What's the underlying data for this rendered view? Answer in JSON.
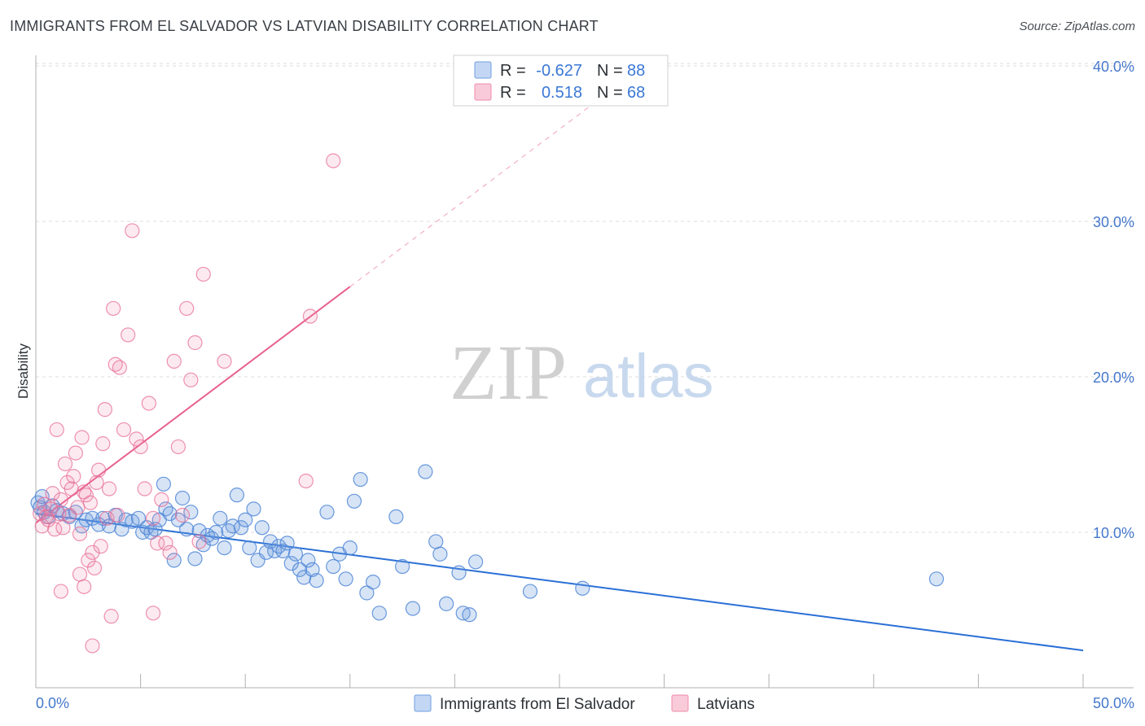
{
  "title": "IMMIGRANTS FROM EL SALVADOR VS LATVIAN DISABILITY CORRELATION CHART",
  "source": "Source: ZipAtlas.com",
  "watermark": {
    "zip": "ZIP",
    "atlas": "atlas"
  },
  "colors": {
    "blue": "#6f9fe0",
    "blue_line": "#2a6fd6",
    "pink": "#f08bab",
    "pink_line": "#e8608e",
    "value_text": "#3a78d6",
    "grid": "#d9d9d9"
  },
  "legend": {
    "rows": [
      {
        "r_label": "R =",
        "r_value": "-0.627",
        "n_label": "N =",
        "n_value": "88"
      },
      {
        "r_label": "R =",
        "r_value": "0.518",
        "n_label": "N =",
        "n_value": "68"
      }
    ]
  },
  "chart_data": {
    "type": "scatter",
    "title": "IMMIGRANTS FROM EL SALVADOR VS LATVIAN DISABILITY CORRELATION CHART",
    "xlabel": "",
    "ylabel": "Disability",
    "xlim": [
      0,
      50
    ],
    "ylim": [
      0,
      42
    ],
    "x_tick_labels": [
      "0.0%",
      "50.0%"
    ],
    "y_ticks": [
      10,
      20,
      30,
      40
    ],
    "y_tick_labels": [
      "10.0%",
      "20.0%",
      "30.0%",
      "40.0%"
    ],
    "grid": true,
    "legend_position": "top-center",
    "series": [
      {
        "name": "Immigrants from El Salvador",
        "color": "#6f9fe0",
        "r": -0.627,
        "n": 88,
        "trend": {
          "x": [
            0,
            50
          ],
          "y": [
            11.2,
            2.4
          ],
          "dashed_to": 50
        },
        "points": [
          [
            0.1,
            11.9
          ],
          [
            0.2,
            11.6
          ],
          [
            0.4,
            11.3
          ],
          [
            0.6,
            11.0
          ],
          [
            0.8,
            11.7
          ],
          [
            1.0,
            11.4
          ],
          [
            1.3,
            11.2
          ],
          [
            1.6,
            11.0
          ],
          [
            1.9,
            11.3
          ],
          [
            2.2,
            10.4
          ],
          [
            2.4,
            10.8
          ],
          [
            2.7,
            10.9
          ],
          [
            3.0,
            10.5
          ],
          [
            3.2,
            10.9
          ],
          [
            3.5,
            10.4
          ],
          [
            3.8,
            11.1
          ],
          [
            4.1,
            10.2
          ],
          [
            4.3,
            10.8
          ],
          [
            4.6,
            10.7
          ],
          [
            4.9,
            10.9
          ],
          [
            5.1,
            10.0
          ],
          [
            5.3,
            10.3
          ],
          [
            5.5,
            10.0
          ],
          [
            5.7,
            10.2
          ],
          [
            5.9,
            10.8
          ],
          [
            6.1,
            13.1
          ],
          [
            6.2,
            11.5
          ],
          [
            6.4,
            11.2
          ],
          [
            6.6,
            8.2
          ],
          [
            6.8,
            10.8
          ],
          [
            7.0,
            12.2
          ],
          [
            7.2,
            10.2
          ],
          [
            7.4,
            11.3
          ],
          [
            7.6,
            8.3
          ],
          [
            7.8,
            10.1
          ],
          [
            8.0,
            9.2
          ],
          [
            8.2,
            9.8
          ],
          [
            8.4,
            9.6
          ],
          [
            8.6,
            10.0
          ],
          [
            8.8,
            10.9
          ],
          [
            9.0,
            9.0
          ],
          [
            9.2,
            10.1
          ],
          [
            9.4,
            10.4
          ],
          [
            9.6,
            12.4
          ],
          [
            9.8,
            10.3
          ],
          [
            10.0,
            10.8
          ],
          [
            10.2,
            9.0
          ],
          [
            10.4,
            11.5
          ],
          [
            10.6,
            8.2
          ],
          [
            10.8,
            10.3
          ],
          [
            11.0,
            8.7
          ],
          [
            11.2,
            9.4
          ],
          [
            11.4,
            8.8
          ],
          [
            11.6,
            9.1
          ],
          [
            11.8,
            8.8
          ],
          [
            12.0,
            9.3
          ],
          [
            12.2,
            8.0
          ],
          [
            12.4,
            8.6
          ],
          [
            12.6,
            7.6
          ],
          [
            12.8,
            7.1
          ],
          [
            13.0,
            8.2
          ],
          [
            13.2,
            7.6
          ],
          [
            13.4,
            6.9
          ],
          [
            13.9,
            11.3
          ],
          [
            14.2,
            7.8
          ],
          [
            14.5,
            8.6
          ],
          [
            14.8,
            7.0
          ],
          [
            15.0,
            9.0
          ],
          [
            15.2,
            12.0
          ],
          [
            15.5,
            13.4
          ],
          [
            15.8,
            6.1
          ],
          [
            16.1,
            6.8
          ],
          [
            16.4,
            4.8
          ],
          [
            17.2,
            11.0
          ],
          [
            17.5,
            7.8
          ],
          [
            18.0,
            5.1
          ],
          [
            18.6,
            13.9
          ],
          [
            19.1,
            9.4
          ],
          [
            19.3,
            8.6
          ],
          [
            19.6,
            5.4
          ],
          [
            20.2,
            7.4
          ],
          [
            20.4,
            4.8
          ],
          [
            20.7,
            4.7
          ],
          [
            21.0,
            8.1
          ],
          [
            23.6,
            6.2
          ],
          [
            26.1,
            6.4
          ],
          [
            43.0,
            7.0
          ],
          [
            0.3,
            12.3
          ]
        ]
      },
      {
        "name": "Latvians",
        "color": "#f08bab",
        "r": 0.518,
        "n": 68,
        "trend": {
          "x": [
            0,
            15
          ],
          "y": [
            10.6,
            25.8
          ],
          "dashed_to": 28.2
        },
        "points": [
          [
            0.2,
            11.2
          ],
          [
            0.3,
            10.4
          ],
          [
            0.4,
            11.8
          ],
          [
            0.5,
            11.0
          ],
          [
            0.6,
            10.8
          ],
          [
            0.7,
            11.5
          ],
          [
            0.8,
            12.5
          ],
          [
            0.9,
            10.2
          ],
          [
            1.0,
            16.6
          ],
          [
            1.1,
            11.2
          ],
          [
            1.2,
            12.1
          ],
          [
            1.3,
            10.3
          ],
          [
            1.4,
            14.4
          ],
          [
            1.5,
            13.2
          ],
          [
            1.6,
            11.1
          ],
          [
            1.7,
            12.8
          ],
          [
            1.8,
            13.6
          ],
          [
            1.9,
            15.1
          ],
          [
            2.0,
            11.6
          ],
          [
            2.1,
            9.9
          ],
          [
            2.2,
            16.1
          ],
          [
            2.3,
            12.6
          ],
          [
            2.4,
            12.4
          ],
          [
            2.5,
            8.2
          ],
          [
            2.6,
            11.9
          ],
          [
            2.7,
            8.7
          ],
          [
            2.8,
            7.7
          ],
          [
            2.9,
            13.2
          ],
          [
            3.0,
            14.0
          ],
          [
            3.1,
            9.1
          ],
          [
            3.2,
            15.7
          ],
          [
            3.3,
            17.9
          ],
          [
            3.4,
            10.9
          ],
          [
            3.5,
            12.8
          ],
          [
            3.6,
            4.6
          ],
          [
            3.7,
            24.4
          ],
          [
            3.8,
            20.8
          ],
          [
            3.9,
            11.1
          ],
          [
            4.0,
            20.6
          ],
          [
            4.2,
            16.6
          ],
          [
            4.4,
            22.7
          ],
          [
            4.6,
            29.4
          ],
          [
            4.8,
            16.0
          ],
          [
            5.0,
            15.5
          ],
          [
            5.2,
            12.8
          ],
          [
            5.4,
            18.3
          ],
          [
            5.6,
            10.9
          ],
          [
            5.8,
            9.3
          ],
          [
            6.0,
            12.1
          ],
          [
            6.2,
            9.3
          ],
          [
            6.4,
            8.7
          ],
          [
            6.6,
            21.0
          ],
          [
            6.8,
            15.5
          ],
          [
            7.0,
            11.1
          ],
          [
            7.2,
            24.4
          ],
          [
            7.4,
            19.8
          ],
          [
            7.6,
            22.2
          ],
          [
            7.8,
            9.4
          ],
          [
            8.0,
            26.6
          ],
          [
            9.0,
            21.0
          ],
          [
            12.9,
            13.3
          ],
          [
            13.1,
            23.9
          ],
          [
            14.2,
            33.9
          ],
          [
            1.2,
            6.2
          ],
          [
            2.1,
            7.3
          ],
          [
            2.3,
            6.5
          ],
          [
            2.7,
            2.7
          ],
          [
            5.6,
            4.8
          ]
        ]
      }
    ]
  },
  "bottom_legend": {
    "items": [
      {
        "label": "Immigrants from El Salvador"
      },
      {
        "label": "Latvians"
      }
    ]
  }
}
